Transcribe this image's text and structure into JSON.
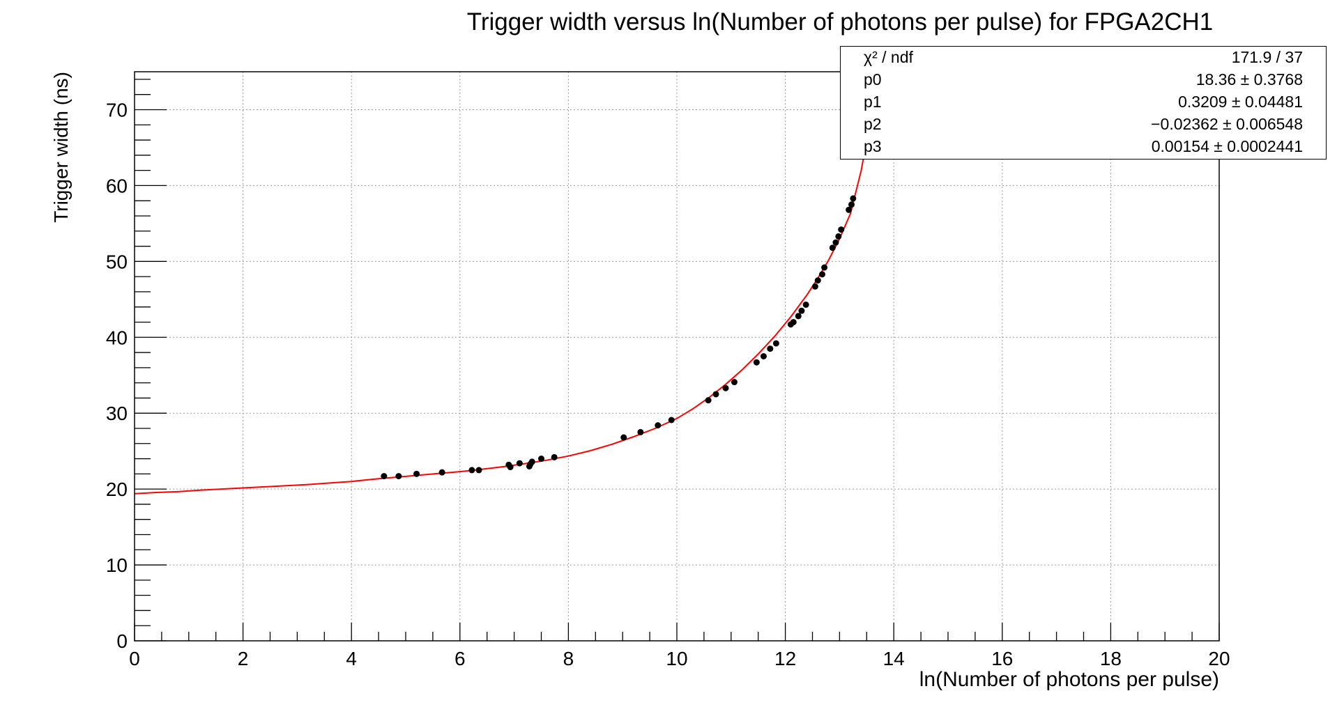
{
  "chart_data": {
    "type": "scatter",
    "title": "Trigger width versus ln(Number of photons per pulse) for FPGA2CH1",
    "xlabel": "ln(Number of photons per pulse)",
    "ylabel": "Trigger width (ns)",
    "xlim": [
      0,
      20
    ],
    "ylim": [
      0,
      75
    ],
    "x_ticks": [
      0,
      2,
      4,
      6,
      8,
      10,
      12,
      14,
      16,
      18,
      20
    ],
    "y_ticks": [
      0,
      10,
      20,
      30,
      40,
      50,
      60,
      70
    ],
    "x_tick_labels": [
      "0",
      "2",
      "4",
      "6",
      "8",
      "10",
      "12",
      "14",
      "16",
      "18",
      "20"
    ],
    "y_tick_labels": [
      "0",
      "10",
      "20",
      "30",
      "40",
      "50",
      "60",
      "70"
    ],
    "grid": true,
    "colors": {
      "points": "#000000",
      "fit": "#ff0000",
      "grid": "#9a9a9a"
    },
    "points": {
      "x": [
        4.6,
        4.87,
        5.2,
        5.67,
        6.22,
        6.35,
        6.9,
        6.93,
        7.1,
        7.28,
        7.3,
        7.33,
        7.5,
        7.74,
        9.02,
        9.33,
        9.65,
        9.9,
        10.58,
        10.72,
        10.9,
        11.06,
        11.47,
        11.6,
        11.72,
        11.83,
        12.1,
        12.15,
        12.24,
        12.3,
        12.38,
        12.55,
        12.6,
        12.68,
        12.72,
        12.87,
        12.93,
        12.98,
        13.03,
        13.17,
        13.22,
        13.25
      ],
      "y": [
        21.7,
        21.7,
        22.0,
        22.2,
        22.5,
        22.5,
        23.2,
        22.9,
        23.4,
        23.0,
        23.3,
        23.6,
        24.0,
        24.2,
        26.8,
        27.5,
        28.4,
        29.1,
        31.7,
        32.5,
        33.3,
        34.1,
        36.7,
        37.5,
        38.5,
        39.2,
        41.7,
        42.0,
        42.8,
        43.5,
        44.3,
        46.7,
        47.5,
        48.3,
        49.2,
        51.8,
        52.5,
        53.3,
        54.2,
        56.8,
        57.5,
        58.3
      ]
    },
    "fit": {
      "function": "p0 + p1*x + p2*x^2 + p3*x^3 (extended with rising curve)",
      "curve_x": [
        0,
        0.4,
        0.8,
        1.2,
        1.6,
        2,
        2.4,
        2.8,
        3.2,
        3.6,
        4,
        4.4,
        4.8,
        5.2,
        5.6,
        6,
        6.4,
        6.8,
        7.2,
        7.6,
        8,
        8.4,
        8.8,
        9.2,
        9.6,
        10,
        10.3,
        10.6,
        10.9,
        11.2,
        11.5,
        11.8,
        12.1,
        12.4,
        12.6,
        12.8,
        13.0,
        13.2,
        13.4,
        13.55
      ],
      "curve_y": [
        19.4,
        19.55,
        19.65,
        19.85,
        20.0,
        20.15,
        20.3,
        20.45,
        20.6,
        20.8,
        21.0,
        21.3,
        21.55,
        21.8,
        22.05,
        22.3,
        22.6,
        22.95,
        23.35,
        23.8,
        24.35,
        25.05,
        25.9,
        26.9,
        28.0,
        29.3,
        30.6,
        32.1,
        33.8,
        35.7,
        37.8,
        40.1,
        42.7,
        45.6,
        47.8,
        50.2,
        53.0,
        56.3,
        62.0,
        68.0
      ]
    },
    "stats": [
      {
        "name": "χ² / ndf",
        "value": "171.9 / 37"
      },
      {
        "name": "p0",
        "value": "18.36 ± 0.3768"
      },
      {
        "name": "p1",
        "value": "0.3209 ± 0.04481"
      },
      {
        "name": "p2",
        "value": "−0.02362 ± 0.006548"
      },
      {
        "name": "p3",
        "value": "0.00154 ± 0.0002441"
      }
    ]
  }
}
